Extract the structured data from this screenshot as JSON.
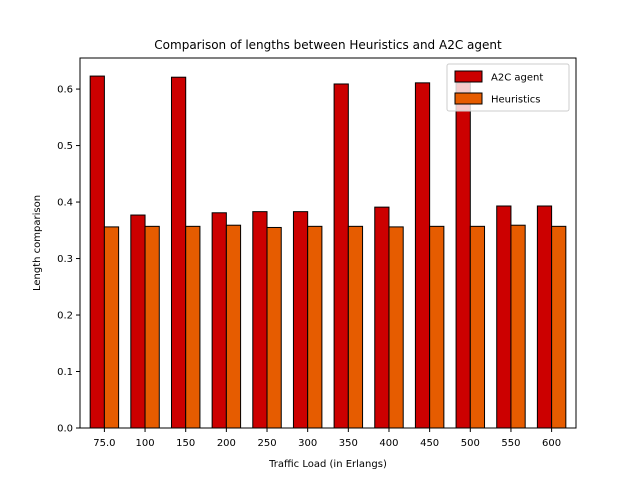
{
  "chart_data": {
    "type": "bar",
    "title": "Comparison of lengths between Heuristics and A2C agent",
    "xlabel": "Traffic Load (in Erlangs)",
    "ylabel": "Length comparison",
    "categories": [
      "75.0",
      "100",
      "150",
      "200",
      "250",
      "300",
      "350",
      "400",
      "450",
      "500",
      "550",
      "600"
    ],
    "ylim": [
      0,
      0.655
    ],
    "yticks": [
      "0.0",
      "0.1",
      "0.2",
      "0.3",
      "0.4",
      "0.5",
      "0.6"
    ],
    "grid": false,
    "legend_position": "top-right",
    "series": [
      {
        "name": "A2C agent",
        "color": "#cc0000",
        "values": [
          0.623,
          0.377,
          0.621,
          0.381,
          0.383,
          0.383,
          0.609,
          0.391,
          0.611,
          0.611,
          0.393,
          0.393
        ]
      },
      {
        "name": "Heuristics",
        "color": "#e65c00",
        "values": [
          0.356,
          0.357,
          0.357,
          0.359,
          0.355,
          0.357,
          0.357,
          0.356,
          0.357,
          0.357,
          0.359,
          0.357
        ]
      }
    ]
  }
}
